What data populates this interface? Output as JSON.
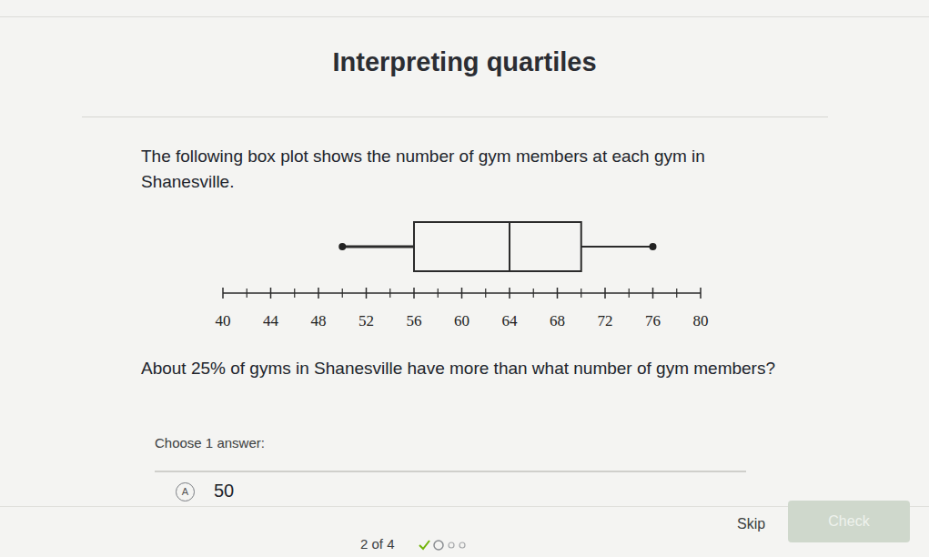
{
  "header": {
    "title": "Interpreting quartiles"
  },
  "prompt": "The following box plot shows the number of gym members at each gym in Shanesville.",
  "chart_data": {
    "type": "box",
    "min": 50,
    "q1": 56,
    "median": 64,
    "q3": 70,
    "max": 76,
    "xlim": [
      40,
      80
    ],
    "xticks": [
      40,
      44,
      48,
      52,
      56,
      60,
      64,
      68,
      72,
      76,
      80
    ],
    "minor_xticks": [
      42,
      46,
      50,
      54,
      58,
      62,
      66,
      70,
      74,
      78
    ]
  },
  "question": "About 25% of gyms in Shanesville have more than what number of gym members?",
  "instruction": "Choose 1 answer:",
  "answers": [
    {
      "letter": "A",
      "text": "50"
    }
  ],
  "footer": {
    "progress": "2 of 4",
    "skip": "Skip",
    "check": "Check"
  }
}
